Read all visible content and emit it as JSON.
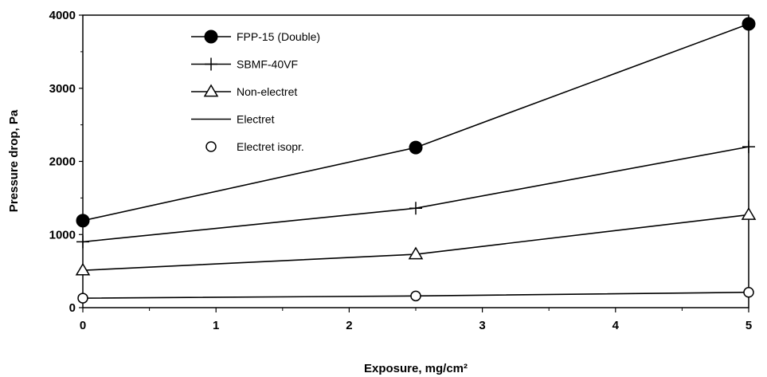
{
  "chart_data": {
    "type": "line",
    "title": "",
    "xlabel": "Exposure, mg/cm²",
    "ylabel": "Pressure drop, Pa",
    "xlim": [
      0,
      5
    ],
    "ylim": [
      0,
      4000
    ],
    "xticks": [
      0,
      1,
      2,
      3,
      4,
      5
    ],
    "yticks": [
      0,
      1000,
      2000,
      3000,
      4000
    ],
    "grid": false,
    "legend_position": "top-left",
    "series": [
      {
        "name": "FPP-15 (Double)",
        "marker": "filled-circle",
        "x": [
          0,
          2.5,
          5
        ],
        "y": [
          1190,
          2190,
          3880
        ]
      },
      {
        "name": "SBMF-40VF",
        "marker": "plus",
        "x": [
          0,
          2.5,
          5
        ],
        "y": [
          900,
          1360,
          2200
        ]
      },
      {
        "name": "Non-electret",
        "marker": "open-triangle",
        "x": [
          0,
          2.5,
          5
        ],
        "y": [
          510,
          730,
          1270
        ]
      },
      {
        "name": "Electret",
        "marker": "none",
        "x": [],
        "y": []
      },
      {
        "name": "Electret isopr.",
        "marker": "open-circle",
        "x": [
          0,
          2.5,
          5
        ],
        "y": [
          130,
          160,
          210
        ]
      }
    ]
  }
}
